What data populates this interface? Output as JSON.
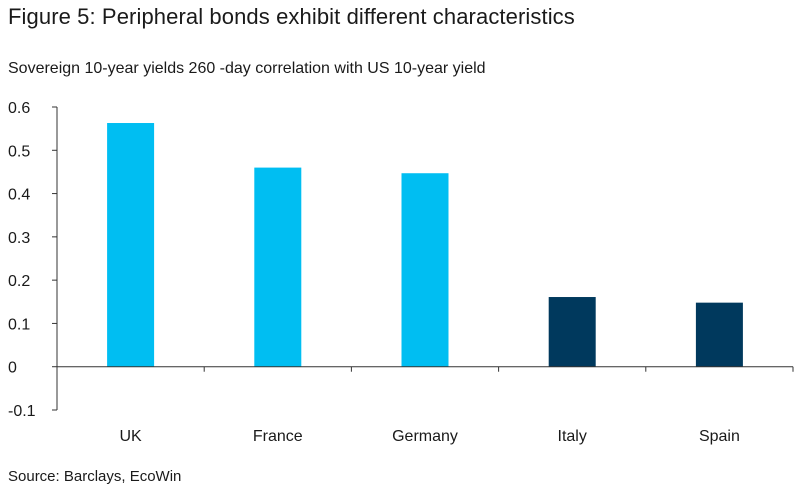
{
  "title": "Figure 5: Peripheral bonds exhibit different characteristics",
  "subtitle": "Sovereign 10-year yields  260 -day correlation with US 10-year yield",
  "source": "Source: Barclays, EcoWin",
  "chart_data": {
    "type": "bar",
    "categories": [
      "UK",
      "France",
      "Germany",
      "Italy",
      "Spain"
    ],
    "values": [
      0.563,
      0.46,
      0.447,
      0.161,
      0.148
    ],
    "ylim": [
      -0.1,
      0.6
    ],
    "yticks": [
      "-0.1",
      "0",
      "0.1",
      "0.2",
      "0.3",
      "0.4",
      "0.5",
      "0.6"
    ],
    "ytick_values": [
      -0.1,
      0,
      0.1,
      0.2,
      0.3,
      0.4,
      0.5,
      0.6
    ],
    "xlabel": "",
    "ylabel": "",
    "grid": false,
    "colors": [
      "#00bef2",
      "#00bef2",
      "#00bef2",
      "#00395d",
      "#00395d"
    ],
    "axis_color": "#333333"
  }
}
